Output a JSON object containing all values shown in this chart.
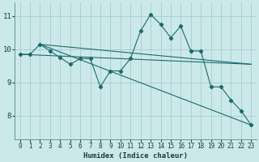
{
  "xlabel": "Humidex (Indice chaleur)",
  "xlim": [
    -0.5,
    23.5
  ],
  "ylim": [
    7.3,
    11.4
  ],
  "yticks": [
    8,
    9,
    10,
    11
  ],
  "xticks": [
    0,
    1,
    2,
    3,
    4,
    5,
    6,
    7,
    8,
    9,
    10,
    11,
    12,
    13,
    14,
    15,
    16,
    17,
    18,
    19,
    20,
    21,
    22,
    23
  ],
  "bg_color": "#cce9ea",
  "grid_color": "#aad0d2",
  "line_color": "#1a6b6b",
  "lines": [
    {
      "x": [
        0,
        1,
        2,
        3,
        4,
        5,
        6,
        7,
        8,
        9,
        10,
        11,
        12,
        13,
        14,
        15,
        16,
        17,
        18,
        19,
        20,
        21,
        22,
        23
      ],
      "y": [
        9.85,
        9.85,
        10.15,
        9.95,
        9.75,
        9.55,
        9.72,
        9.72,
        8.87,
        9.35,
        9.35,
        9.72,
        10.55,
        11.05,
        10.75,
        10.35,
        10.7,
        9.95,
        9.95,
        8.87,
        8.87,
        8.47,
        8.15,
        7.72
      ],
      "marker": "D",
      "markersize": 2.2
    },
    {
      "x": [
        0,
        23
      ],
      "y": [
        9.85,
        9.55
      ],
      "marker": null,
      "markersize": 0
    },
    {
      "x": [
        2,
        23
      ],
      "y": [
        10.15,
        9.55
      ],
      "marker": null,
      "markersize": 0
    },
    {
      "x": [
        2,
        23
      ],
      "y": [
        10.15,
        7.72
      ],
      "marker": null,
      "markersize": 0
    }
  ]
}
